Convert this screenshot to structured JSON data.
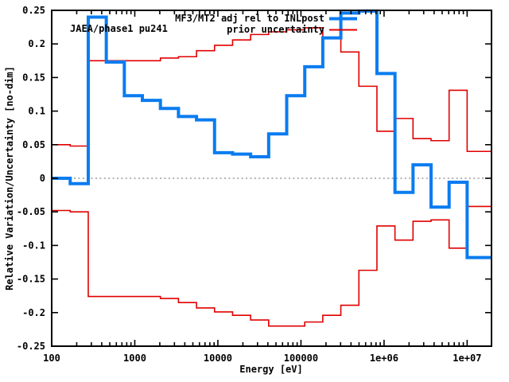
{
  "figure": {
    "background": "#ffffff",
    "axis_color": "#000000",
    "zero_line_color": "#9a9a9a"
  },
  "annotation": "JAEA/phase1 pu241",
  "chart_data": {
    "type": "line",
    "subtype": "step-histogram",
    "title": "",
    "xlabel": "Energy [eV]",
    "ylabel": "Relative Variation/Uncertainty [no-dim]",
    "x_scale": "log",
    "xlim": [
      100,
      19640000
    ],
    "ylim": [
      -0.25,
      0.25
    ],
    "grid": "zero-axis-dashed-only",
    "x_ticks": {
      "values": [
        100,
        1000,
        10000,
        100000,
        1000000,
        10000000
      ],
      "labels": [
        "100",
        "1000",
        "10000",
        "100000",
        "1e+06",
        "1e+07"
      ]
    },
    "y_ticks": {
      "values": [
        -0.25,
        -0.2,
        -0.15,
        -0.1,
        -0.05,
        0,
        0.05,
        0.1,
        0.15,
        0.2,
        0.25
      ],
      "labels": [
        "-0.25",
        "-0.2",
        "-0.15",
        "-0.1",
        "-0.05",
        "0",
        "0.05",
        "0.1",
        "0.15",
        "0.2",
        "0.25"
      ]
    },
    "bin_edges": [
      100,
      167,
      275.4,
      454.0,
      748.5,
      1234,
      2034.7,
      3354.6,
      5530.8,
      9118.8,
      15034,
      24788,
      40868,
      67379,
      111090,
      183160,
      301970,
      497870,
      820850,
      1353400,
      2231300,
      3678800,
      6065300,
      10000000,
      19640000
    ],
    "series": [
      {
        "name": "prior uncertainty (upper band)",
        "slug": "series-prior-uncertainty-upper",
        "color": "#e00000",
        "line_width": 1.6,
        "values": [
          0.05,
          0.048,
          0.175,
          0.175,
          0.175,
          0.175,
          0.179,
          0.181,
          0.19,
          0.198,
          0.206,
          0.214,
          0.218,
          0.221,
          0.224,
          0.209,
          0.188,
          0.137,
          0.07,
          0.089,
          0.059,
          0.056,
          0.131,
          0.04
        ]
      },
      {
        "name": "prior uncertainty (lower band)",
        "slug": "series-prior-uncertainty-lower",
        "color": "#e00000",
        "line_width": 1.6,
        "values": [
          -0.048,
          -0.05,
          -0.176,
          -0.176,
          -0.176,
          -0.176,
          -0.179,
          -0.185,
          -0.193,
          -0.199,
          -0.204,
          -0.211,
          -0.22,
          -0.22,
          -0.214,
          -0.204,
          -0.189,
          -0.137,
          -0.071,
          -0.092,
          -0.064,
          -0.062,
          -0.104,
          -0.042
        ]
      },
      {
        "name": "MF3/MT2 adj rel to INLpost",
        "slug": "series-mf3-mt2-adjustment",
        "color": "#0a7cf0",
        "line_width": 4,
        "values": [
          0.0,
          -0.008,
          0.24,
          0.173,
          0.123,
          0.116,
          0.104,
          0.092,
          0.087,
          0.038,
          0.036,
          0.032,
          0.066,
          0.123,
          0.166,
          0.209,
          0.246,
          0.249,
          0.156,
          -0.021,
          0.02,
          -0.043,
          -0.006,
          -0.118
        ]
      }
    ],
    "legend": {
      "position": "top-right-inside",
      "entries": [
        {
          "label": "MF3/MT2 adj rel to INLpost",
          "color": "#0a7cf0",
          "line_width": 4
        },
        {
          "label": "prior uncertainty",
          "color": "#e00000",
          "line_width": 2
        }
      ]
    }
  }
}
